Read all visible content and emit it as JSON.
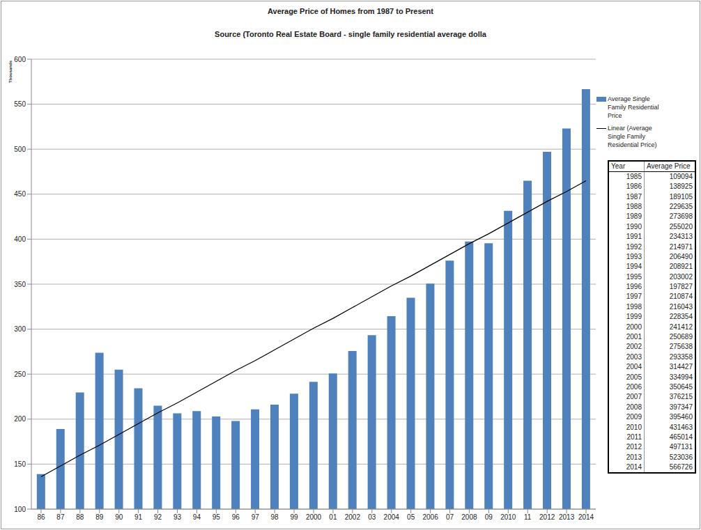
{
  "chart_data": {
    "type": "bar",
    "title": "Average Price of Homes from 1987 to Present",
    "subtitle": "Source (Toronto Real Estate Board - single family residential average dolla",
    "y_label": "Thousands",
    "categories": [
      "86",
      "87",
      "88",
      "89",
      "90",
      "91",
      "92",
      "93",
      "94",
      "95",
      "96",
      "97",
      "98",
      "99",
      "2000",
      "01",
      "2002",
      "03",
      "2004",
      "05",
      "2006",
      "07",
      "2008",
      "09",
      "2010",
      "11",
      "2012",
      "2013",
      "2014"
    ],
    "series": [
      {
        "name": "Average Single Family Residential Price",
        "type": "bar",
        "color": "#4f81bd",
        "values": [
          138.925,
          189.105,
          229.635,
          273.698,
          255.02,
          234.313,
          214.971,
          206.49,
          208.921,
          203.002,
          197.827,
          210.874,
          216.043,
          228.354,
          241.412,
          250.689,
          275.638,
          293.358,
          314.427,
          334.994,
          350.645,
          376.215,
          397.347,
          395.46,
          431.463,
          465.014,
          497.131,
          523.036,
          566.726
        ]
      },
      {
        "name": "Linear (Average Single Family Residential Price)",
        "type": "line",
        "color": "#000000",
        "values": [
          136,
          148,
          160,
          171,
          183,
          195,
          207,
          218,
          230,
          242,
          254,
          265,
          277,
          289,
          301,
          312,
          324,
          336,
          348,
          359,
          371,
          383,
          395,
          406,
          418,
          430,
          442,
          453,
          465
        ]
      }
    ],
    "ylim": [
      100,
      600
    ],
    "yticks": [
      100,
      150,
      200,
      250,
      300,
      350,
      400,
      450,
      500,
      550,
      600
    ],
    "grid": true,
    "legend": "right"
  },
  "table": {
    "header": [
      "Year",
      "Average Price"
    ],
    "rows": [
      [
        1985,
        109094
      ],
      [
        1986,
        138925
      ],
      [
        1987,
        189105
      ],
      [
        1988,
        229635
      ],
      [
        1989,
        273698
      ],
      [
        1990,
        255020
      ],
      [
        1991,
        234313
      ],
      [
        1992,
        214971
      ],
      [
        1993,
        206490
      ],
      [
        1994,
        208921
      ],
      [
        1995,
        203002
      ],
      [
        1996,
        197827
      ],
      [
        1997,
        210874
      ],
      [
        1998,
        216043
      ],
      [
        1999,
        228354
      ],
      [
        2000,
        241412
      ],
      [
        2001,
        250689
      ],
      [
        2002,
        275638
      ],
      [
        2003,
        293358
      ],
      [
        2004,
        314427
      ],
      [
        2005,
        334994
      ],
      [
        2006,
        350645
      ],
      [
        2007,
        376215
      ],
      [
        2008,
        397347
      ],
      [
        2009,
        395460
      ],
      [
        2010,
        431463
      ],
      [
        2011,
        465014
      ],
      [
        2012,
        497131
      ],
      [
        2013,
        523036
      ],
      [
        2014,
        566726
      ]
    ]
  }
}
